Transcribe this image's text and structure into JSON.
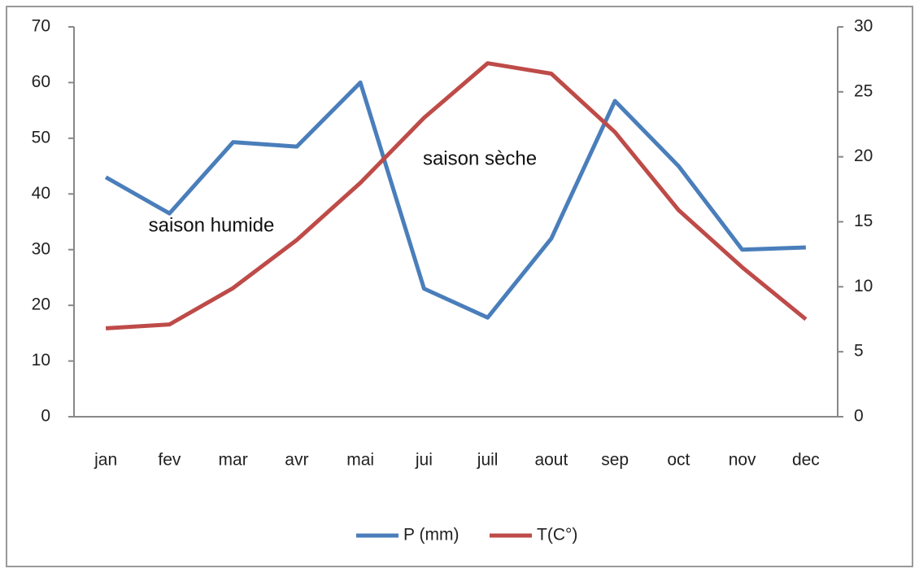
{
  "chart_data": {
    "type": "line",
    "categories": [
      "jan",
      "fev",
      "mar",
      "avr",
      "mai",
      "jui",
      "juil",
      "aout",
      "sep",
      "oct",
      "nov",
      "dec"
    ],
    "series": [
      {
        "name": "P (mm)",
        "color": "#4a7ebb",
        "values": [
          43,
          36.5,
          49.3,
          48.5,
          60,
          23,
          17.8,
          32,
          56.7,
          45,
          30,
          30.4
        ]
      },
      {
        "name": "T(C°)",
        "color": "#be4b48",
        "axis": "y2",
        "values": [
          6.8,
          7.1,
          9.9,
          13.6,
          18,
          23,
          27.2,
          26.4,
          21.9,
          15.9,
          11.5,
          7.5
        ]
      }
    ],
    "ylim": [
      0,
      70
    ],
    "yticks": [
      0,
      10,
      20,
      30,
      40,
      50,
      60,
      70
    ],
    "y2lim": [
      0,
      30
    ],
    "y2ticks": [
      0,
      5,
      10,
      15,
      20,
      25,
      30
    ],
    "annotations": [
      "saison humide",
      "saison sèche"
    ],
    "legend": "bottom",
    "grid": false
  }
}
